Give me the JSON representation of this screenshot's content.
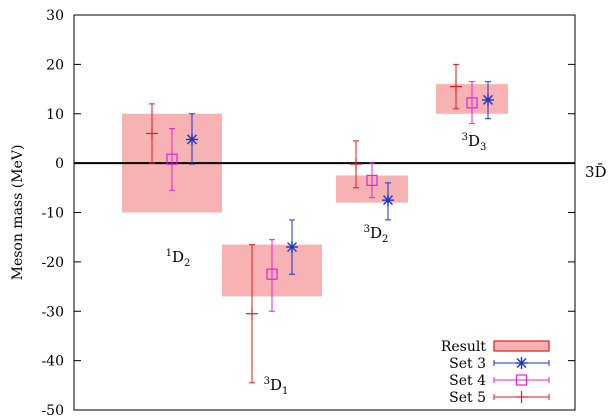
{
  "chart_data": {
    "type": "scatter",
    "title": "",
    "xlabel": "",
    "ylabel": "Meson mass (MeV)",
    "ylim": [
      -50,
      30
    ],
    "yticks": [
      -50,
      -40,
      -30,
      -20,
      -10,
      0,
      10,
      20,
      30
    ],
    "grid": false,
    "legend_position": "bottom-right",
    "reference_line": {
      "y": 0,
      "label": "3D̄"
    },
    "states": [
      {
        "label": "1D2",
        "sup": "1",
        "base": "D",
        "sub": "2"
      },
      {
        "label": "3D1",
        "sup": "3",
        "base": "D",
        "sub": "1"
      },
      {
        "label": "3D2",
        "sup": "3",
        "base": "D",
        "sub": "2"
      },
      {
        "label": "3D3",
        "sup": "3",
        "base": "D",
        "sub": "3"
      }
    ],
    "result": {
      "name": "Result",
      "color": "#f7b3b3",
      "bands": [
        {
          "state": "1D2",
          "low": -10,
          "high": 10
        },
        {
          "state": "3D1",
          "low": -27,
          "high": -16.5
        },
        {
          "state": "3D2",
          "low": -8,
          "high": -2.5
        },
        {
          "state": "3D3",
          "low": 10,
          "high": 16
        }
      ]
    },
    "series": [
      {
        "name": "Set 5",
        "color": "#e31a1c",
        "marker": "plus",
        "points": [
          {
            "state": "1D2",
            "y": 6,
            "err_low": 0,
            "err_high": 12
          },
          {
            "state": "3D1",
            "y": -30.5,
            "err_low": -44.5,
            "err_high": -16.5
          },
          {
            "state": "3D2",
            "y": -0.2,
            "err_low": -5,
            "err_high": 4.5
          },
          {
            "state": "3D3",
            "y": 15.5,
            "err_low": 11,
            "err_high": 20
          }
        ]
      },
      {
        "name": "Set 4",
        "color": "#e020e0",
        "marker": "square",
        "points": [
          {
            "state": "1D2",
            "y": 0.8,
            "err_low": -5.5,
            "err_high": 7
          },
          {
            "state": "3D1",
            "y": -22.5,
            "err_low": -30,
            "err_high": -15.5
          },
          {
            "state": "3D2",
            "y": -3.5,
            "err_low": -7,
            "err_high": 0
          },
          {
            "state": "3D3",
            "y": 12.2,
            "err_low": 8,
            "err_high": 16.5
          }
        ]
      },
      {
        "name": "Set 3",
        "color": "#1a33cc",
        "marker": "star",
        "points": [
          {
            "state": "1D2",
            "y": 4.8,
            "err_low": -0.2,
            "err_high": 10
          },
          {
            "state": "3D1",
            "y": -17,
            "err_low": -22.5,
            "err_high": -11.5
          },
          {
            "state": "3D2",
            "y": -7.5,
            "err_low": -11.5,
            "err_high": -4
          },
          {
            "state": "3D3",
            "y": 12.8,
            "err_low": 9,
            "err_high": 16.5
          }
        ]
      }
    ],
    "legend": [
      "Result",
      "Set 3",
      "Set 4",
      "Set 5"
    ]
  }
}
